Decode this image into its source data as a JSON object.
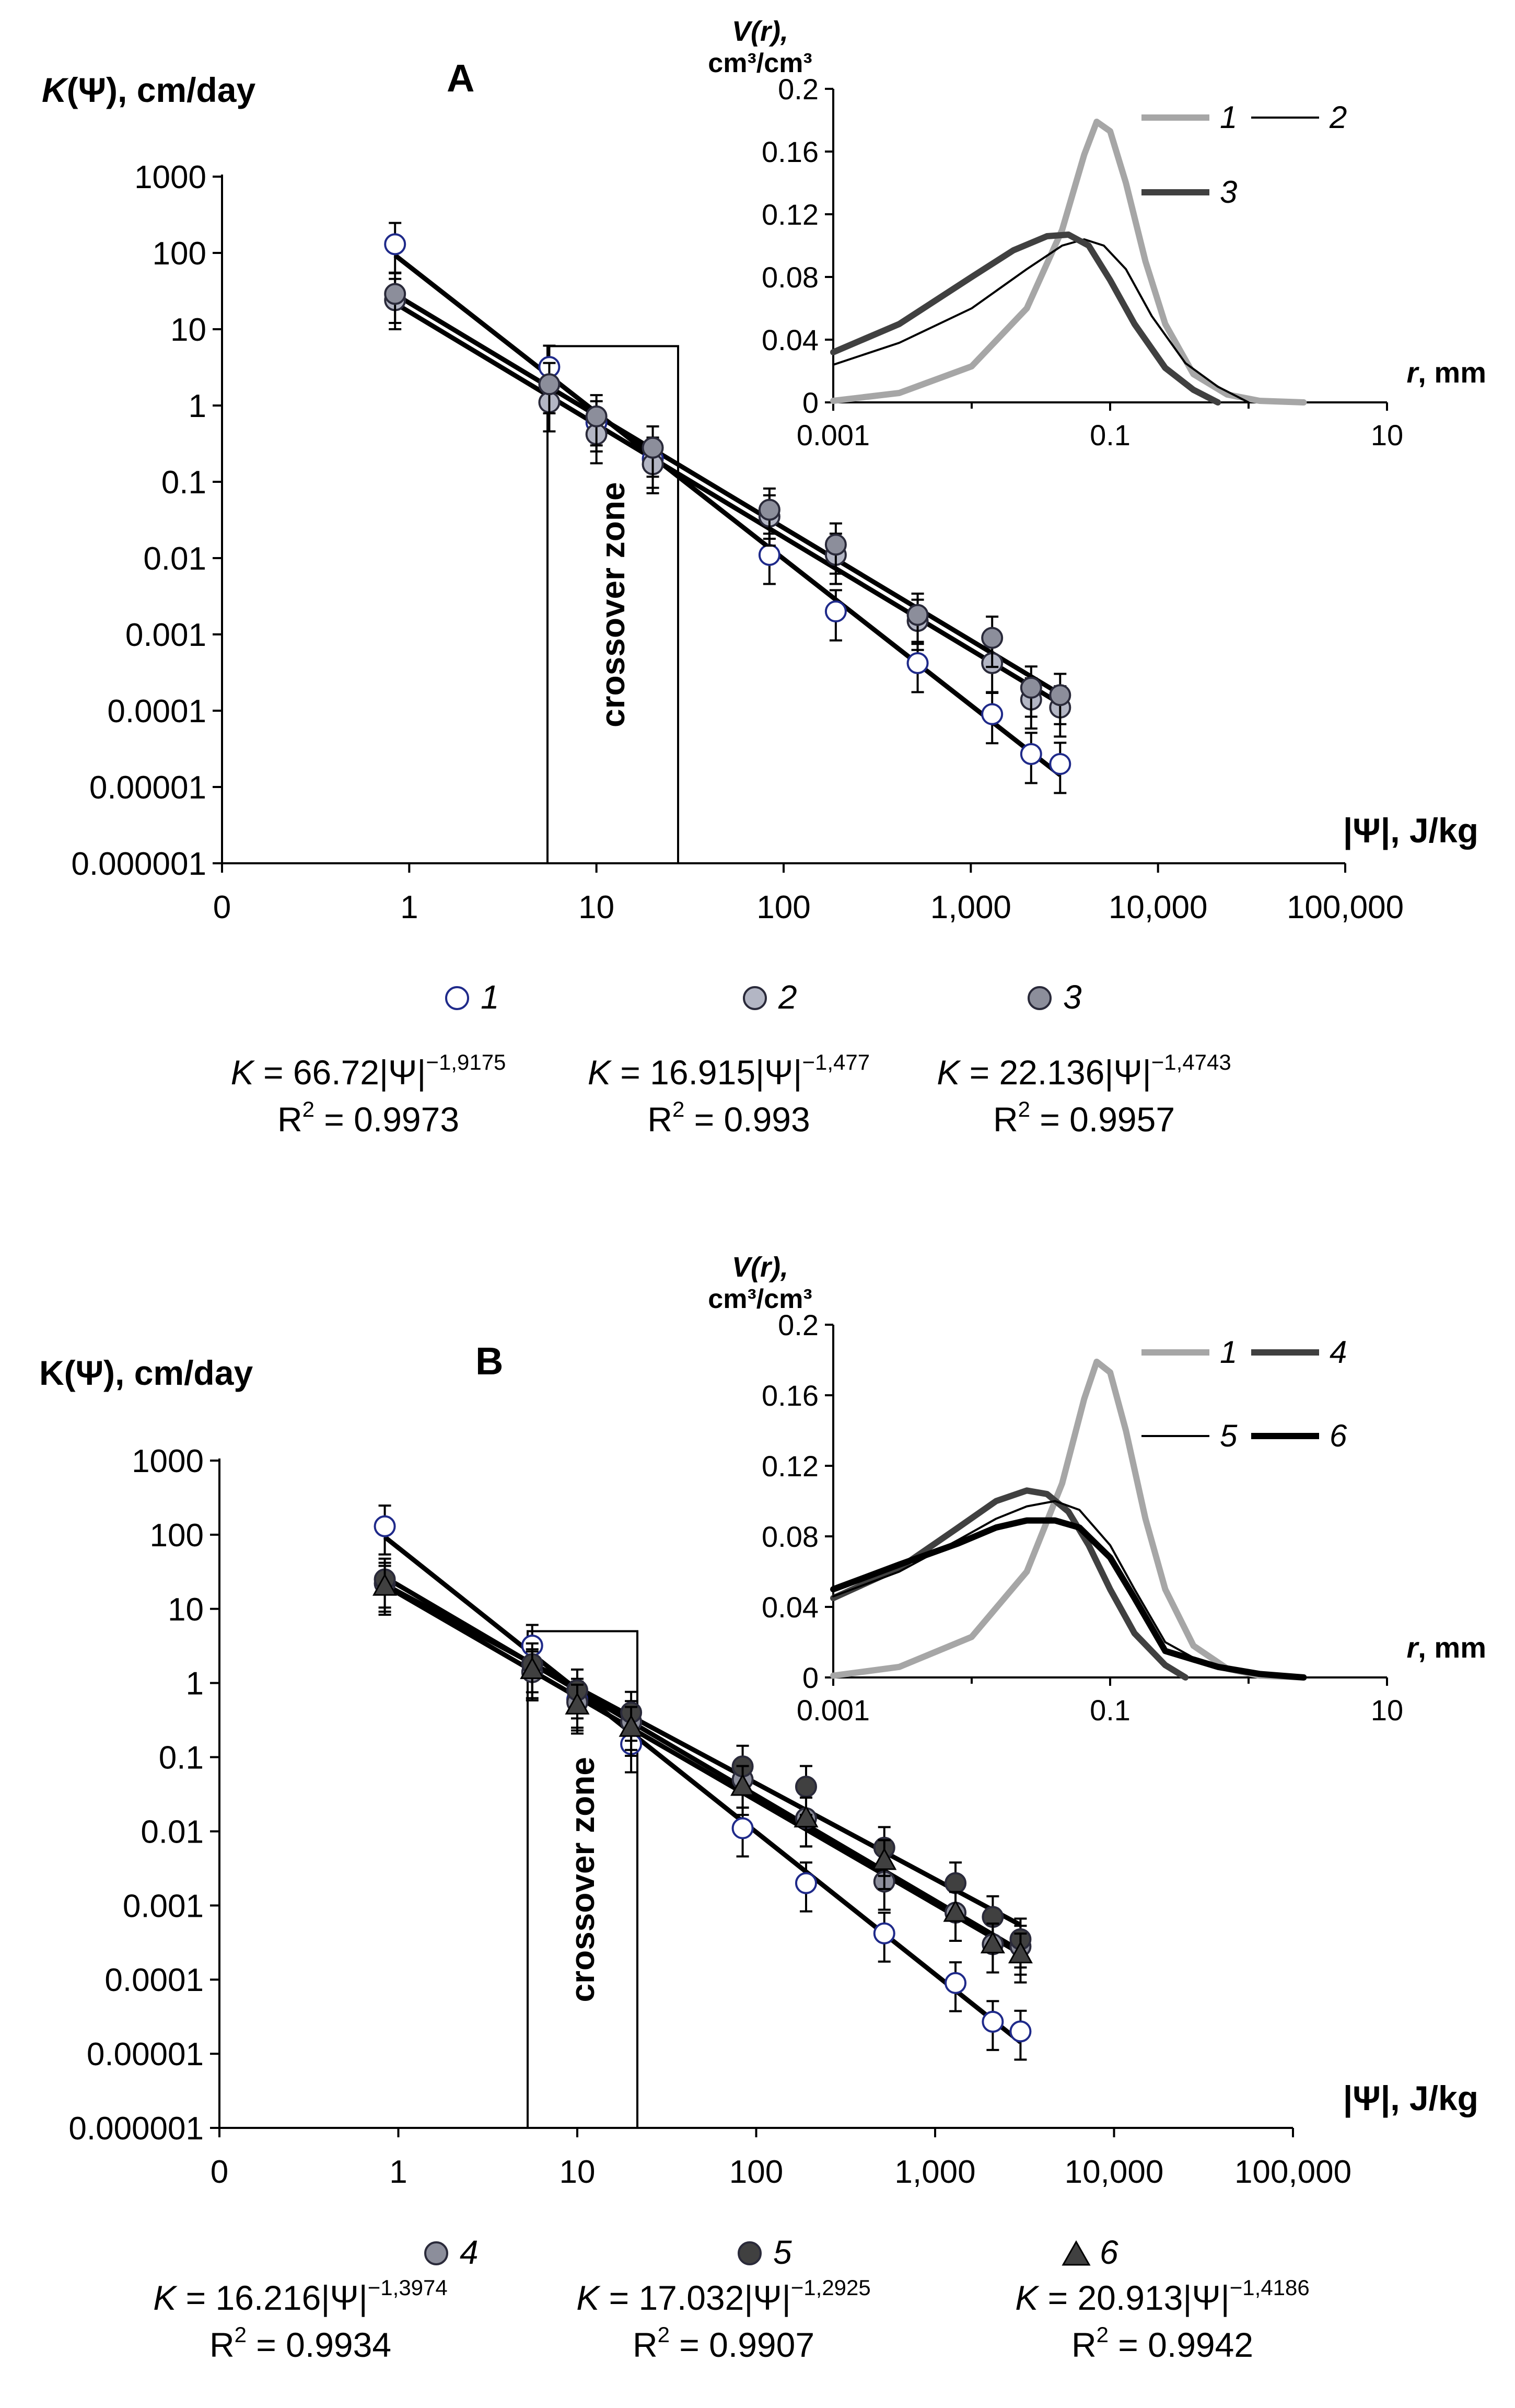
{
  "chart_data": [
    {
      "panel": "A",
      "type": "scatter",
      "title": "A",
      "ylabel_italic": "K",
      "ylabel_rest": "(Ψ), cm/day",
      "xlabel": "|Ψ|, J/kg",
      "xscale": "log",
      "yscale": "log",
      "xlim": [
        0.1,
        100000
      ],
      "ylim": [
        1e-06,
        1000
      ],
      "xticks": [
        "0",
        "1",
        "10",
        "100",
        "1,000",
        "10,000",
        "100,000"
      ],
      "yticks": [
        "0.000001",
        "0.00001",
        "0.0001",
        "0.001",
        "0.01",
        "0.1",
        "1",
        "10",
        "100",
        "1000"
      ],
      "zone_label": "crossover zone",
      "zone_x": [
        5.8,
        28
      ],
      "zone_ymax": 6,
      "series": [
        {
          "id": "1",
          "label": "1",
          "fill": "#ffffff",
          "marker": "circle",
          "x": [
            0.84,
            5.6,
            10,
            20,
            84,
            190,
            520,
            1300,
            2100,
            3000
          ],
          "y": [
            130,
            3.2,
            0.6,
            0.2,
            0.011,
            0.002,
            0.00042,
            9e-05,
            2.7e-05,
            2e-05
          ],
          "fit": {
            "a": 66.72,
            "b": -1.9175
          }
        },
        {
          "id": "2",
          "label": "2",
          "fill": "#b3b6c4",
          "marker": "circle",
          "x": [
            0.84,
            5.6,
            10,
            20,
            84,
            190,
            520,
            1300,
            2100,
            3000
          ],
          "y": [
            24,
            1.1,
            0.42,
            0.17,
            0.035,
            0.011,
            0.0015,
            0.00042,
            0.00014,
            0.00011
          ],
          "fit": {
            "a": 16.915,
            "b": -1.477
          }
        },
        {
          "id": "3",
          "label": "3",
          "fill": "#8c8e9b",
          "marker": "circle",
          "x": [
            0.84,
            5.6,
            10,
            20,
            84,
            190,
            520,
            1300,
            2100,
            3000
          ],
          "y": [
            29,
            1.9,
            0.72,
            0.28,
            0.043,
            0.015,
            0.0018,
            0.0009,
            0.0002,
            0.00016
          ],
          "fit": {
            "a": 22.136,
            "b": -1.4743
          }
        }
      ],
      "equations": [
        {
          "k": "K",
          "eq": " = 66.72|Ψ|",
          "exp": "−1,9175",
          "r2_label": "R",
          "r2_sup": "2",
          "r2": " = 0.9973"
        },
        {
          "k": "K",
          "eq": " = 16.915|Ψ|",
          "exp": "−1,477",
          "r2_label": "R",
          "r2_sup": "2",
          "r2": " = 0.993"
        },
        {
          "k": "K",
          "eq": " = 22.136|Ψ|",
          "exp": "−1,4743",
          "r2_label": "R",
          "r2_sup": "2",
          "r2": " = 0.9957"
        }
      ],
      "inset": {
        "type": "line",
        "ylabel_line1": "V(r),",
        "ylabel_line2": "cm³/cm³",
        "xlabel_italic": "r",
        "xlabel_rest": ", mm",
        "xscale": "log",
        "xlim": [
          0.001,
          10
        ],
        "ylim": [
          0,
          0.2
        ],
        "xticks": [
          "0.001",
          "0.1",
          "10"
        ],
        "yticks": [
          "0",
          "0.04",
          "0.08",
          "0.12",
          "0.16",
          "0.2"
        ],
        "legend": [
          {
            "label": "1",
            "color": "#a6a6a6",
            "width": 12
          },
          {
            "label": "2",
            "color": "#000000",
            "width": 4
          },
          {
            "label": "3",
            "color": "#404040",
            "width": 12
          }
        ],
        "series": [
          {
            "name": "1",
            "color": "#a6a6a6",
            "width": 12,
            "x": [
              0.001,
              0.003,
              0.01,
              0.025,
              0.045,
              0.065,
              0.08,
              0.1,
              0.13,
              0.18,
              0.25,
              0.4,
              0.7,
              1.2,
              2.5
            ],
            "y": [
              0.001,
              0.006,
              0.023,
              0.06,
              0.11,
              0.158,
              0.179,
              0.173,
              0.14,
              0.09,
              0.05,
              0.018,
              0.005,
              0.001,
              0.0
            ]
          },
          {
            "name": "2",
            "color": "#000000",
            "width": 4,
            "x": [
              0.001,
              0.003,
              0.01,
              0.025,
              0.045,
              0.065,
              0.09,
              0.13,
              0.2,
              0.35,
              0.6,
              1.0
            ],
            "y": [
              0.024,
              0.038,
              0.06,
              0.085,
              0.1,
              0.104,
              0.1,
              0.085,
              0.055,
              0.025,
              0.01,
              0.0
            ]
          },
          {
            "name": "3",
            "color": "#404040",
            "width": 12,
            "x": [
              0.001,
              0.003,
              0.01,
              0.02,
              0.035,
              0.05,
              0.07,
              0.1,
              0.15,
              0.25,
              0.4,
              0.6
            ],
            "y": [
              0.032,
              0.05,
              0.08,
              0.097,
              0.106,
              0.107,
              0.1,
              0.078,
              0.05,
              0.022,
              0.008,
              0.0
            ]
          }
        ]
      }
    },
    {
      "panel": "B",
      "type": "scatter",
      "title": "B",
      "ylabel_italic": "",
      "ylabel_rest": "K(Ψ), cm/day",
      "xlabel": "|Ψ|, J/kg",
      "xscale": "log",
      "yscale": "log",
      "xlim": [
        0.1,
        100000
      ],
      "ylim": [
        1e-06,
        1000
      ],
      "xticks": [
        "0",
        "1",
        "10",
        "100",
        "1,000",
        "10,000",
        "100,000"
      ],
      "yticks": [
        "0.000001",
        "0.00001",
        "0.0001",
        "0.001",
        "0.01",
        "0.1",
        "1",
        "10",
        "100",
        "1000"
      ],
      "zone_label": "crossover zone",
      "zone_x": [
        5.6,
        21
      ],
      "zone_ymax": 5,
      "series": [
        {
          "id": "1",
          "label": "1",
          "fill": "#ffffff",
          "marker": "circle",
          "x": [
            0.84,
            5.6,
            10,
            20,
            84,
            190,
            520,
            1300,
            2100,
            3000
          ],
          "y": [
            130,
            3.2,
            0.6,
            0.15,
            0.011,
            0.002,
            0.00042,
            9e-05,
            2.7e-05,
            2e-05
          ],
          "fit": null
        },
        {
          "id": "4",
          "label": "4",
          "fill": "#8c8e9b",
          "marker": "circle",
          "x": [
            0.84,
            5.6,
            10,
            20,
            84,
            190,
            520,
            1300,
            2100,
            3000
          ],
          "y": [
            22,
            1.4,
            0.55,
            0.3,
            0.05,
            0.015,
            0.0021,
            0.0008,
            0.0003,
            0.00028
          ],
          "fit": {
            "a": 16.216,
            "b": -1.3974
          }
        },
        {
          "id": "5",
          "label": "5",
          "fill": "#404040",
          "marker": "circle",
          "x": [
            0.84,
            5.6,
            10,
            20,
            84,
            190,
            520,
            1300,
            2100,
            3000
          ],
          "y": [
            25,
            1.8,
            0.8,
            0.4,
            0.075,
            0.04,
            0.006,
            0.002,
            0.0007,
            0.00035
          ],
          "fit": {
            "a": 17.032,
            "b": -1.2925
          }
        },
        {
          "id": "6",
          "label": "6",
          "fill": "#404040",
          "marker": "triangle",
          "x": [
            0.84,
            5.6,
            10,
            20,
            84,
            190,
            520,
            1300,
            2100,
            3000
          ],
          "y": [
            20,
            1.5,
            0.5,
            0.25,
            0.04,
            0.015,
            0.004,
            0.0008,
            0.0003,
            0.00022
          ],
          "fit": {
            "a": 20.913,
            "b": -1.4186
          }
        }
      ],
      "legend_only": [
        "4",
        "5",
        "6"
      ],
      "equations": [
        {
          "k": "K",
          "eq": " = 16.216|Ψ|",
          "exp": "−1,3974",
          "r2_label": "R",
          "r2_sup": "2",
          "r2": " = 0.9934"
        },
        {
          "k": "K",
          "eq": " = 17.032|Ψ|",
          "exp": "−1,2925",
          "r2_label": "R",
          "r2_sup": "2",
          "r2": " = 0.9907"
        },
        {
          "k": "K",
          "eq": " = 20.913|Ψ|",
          "exp": "−1,4186",
          "r2_label": "R",
          "r2_sup": "2",
          "r2": " = 0.9942"
        }
      ],
      "inset": {
        "type": "line",
        "ylabel_line1": "V(r),",
        "ylabel_line2": "cm³/cm³",
        "xlabel_italic": "r",
        "xlabel_rest": ", mm",
        "xscale": "log",
        "xlim": [
          0.001,
          10
        ],
        "ylim": [
          0,
          0.2
        ],
        "xticks": [
          "0.001",
          "0.1",
          "10"
        ],
        "yticks": [
          "0",
          "0.04",
          "0.08",
          "0.12",
          "0.16",
          "0.2"
        ],
        "legend": [
          {
            "label": "1",
            "color": "#a6a6a6",
            "width": 12
          },
          {
            "label": "4",
            "color": "#404040",
            "width": 12
          },
          {
            "label": "5",
            "color": "#000000",
            "width": 4
          },
          {
            "label": "6",
            "color": "#000000",
            "width": 12
          }
        ],
        "series": [
          {
            "name": "1",
            "color": "#a6a6a6",
            "width": 12,
            "x": [
              0.001,
              0.003,
              0.01,
              0.025,
              0.045,
              0.065,
              0.08,
              0.1,
              0.13,
              0.18,
              0.25,
              0.4,
              0.7,
              1.2,
              2.5
            ],
            "y": [
              0.001,
              0.006,
              0.023,
              0.06,
              0.11,
              0.158,
              0.179,
              0.173,
              0.14,
              0.09,
              0.05,
              0.018,
              0.005,
              0.001,
              0.0
            ]
          },
          {
            "name": "4",
            "color": "#404040",
            "width": 12,
            "x": [
              0.001,
              0.003,
              0.008,
              0.015,
              0.025,
              0.035,
              0.05,
              0.07,
              0.1,
              0.15,
              0.25,
              0.35
            ],
            "y": [
              0.045,
              0.062,
              0.085,
              0.1,
              0.106,
              0.104,
              0.094,
              0.075,
              0.05,
              0.025,
              0.007,
              0.0
            ]
          },
          {
            "name": "5",
            "color": "#000000",
            "width": 4,
            "x": [
              0.001,
              0.003,
              0.008,
              0.015,
              0.025,
              0.04,
              0.06,
              0.1,
              0.15,
              0.25,
              0.5,
              1.0,
              2.5
            ],
            "y": [
              0.046,
              0.06,
              0.078,
              0.09,
              0.097,
              0.1,
              0.095,
              0.075,
              0.05,
              0.02,
              0.007,
              0.003,
              0.0
            ]
          },
          {
            "name": "6",
            "color": "#000000",
            "width": 12,
            "x": [
              0.001,
              0.003,
              0.008,
              0.015,
              0.025,
              0.04,
              0.06,
              0.1,
              0.15,
              0.25,
              0.6,
              1.2,
              2.5
            ],
            "y": [
              0.05,
              0.064,
              0.076,
              0.085,
              0.089,
              0.089,
              0.085,
              0.068,
              0.045,
              0.015,
              0.006,
              0.002,
              0.0
            ]
          }
        ]
      }
    }
  ]
}
